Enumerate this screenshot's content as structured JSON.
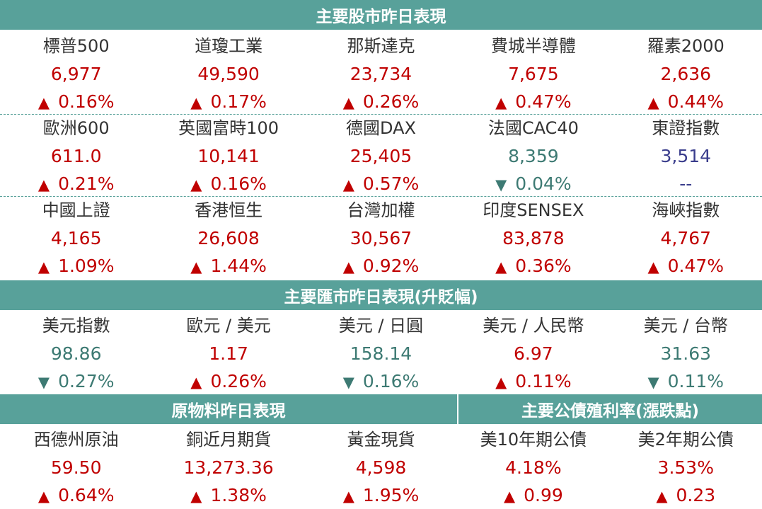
{
  "headers": {
    "stocks": "主要股市昨日表現",
    "fx": "主要匯市昨日表現(升貶幅)",
    "commodities": "原物料昨日表現",
    "bonds": "主要公債殖利率(漲跌點)"
  },
  "colors": {
    "header_bg": "#58a19a",
    "up": "#c00000",
    "down": "#3d7a73",
    "neutral": "#3a3d8c"
  },
  "stocks_row1": [
    {
      "name": "標普500",
      "value": "6,977",
      "change": "0.16%",
      "dir": "up"
    },
    {
      "name": "道瓊工業",
      "value": "49,590",
      "change": "0.17%",
      "dir": "up"
    },
    {
      "name": "那斯達克",
      "value": "23,734",
      "change": "0.26%",
      "dir": "up"
    },
    {
      "name": "費城半導體",
      "value": "7,675",
      "change": "0.47%",
      "dir": "up"
    },
    {
      "name": "羅素2000",
      "value": "2,636",
      "change": "0.44%",
      "dir": "up"
    }
  ],
  "stocks_row2": [
    {
      "name": "歐洲600",
      "value": "611.0",
      "change": "0.21%",
      "dir": "up"
    },
    {
      "name": "英國富時100",
      "value": "10,141",
      "change": "0.16%",
      "dir": "up"
    },
    {
      "name": "德國DAX",
      "value": "25,405",
      "change": "0.57%",
      "dir": "up"
    },
    {
      "name": "法國CAC40",
      "value": "8,359",
      "change": "0.04%",
      "dir": "down"
    },
    {
      "name": "東證指數",
      "value": "3,514",
      "change": "--",
      "dir": "neutral"
    }
  ],
  "stocks_row3": [
    {
      "name": "中國上證",
      "value": "4,165",
      "change": "1.09%",
      "dir": "up"
    },
    {
      "name": "香港恒生",
      "value": "26,608",
      "change": "1.44%",
      "dir": "up"
    },
    {
      "name": "台灣加權",
      "value": "30,567",
      "change": "0.92%",
      "dir": "up"
    },
    {
      "name": "印度SENSEX",
      "value": "83,878",
      "change": "0.36%",
      "dir": "up"
    },
    {
      "name": "海峽指數",
      "value": "4,767",
      "change": "0.47%",
      "dir": "up"
    }
  ],
  "fx": [
    {
      "name": "美元指數",
      "value": "98.86",
      "change": "0.27%",
      "dir": "down"
    },
    {
      "name": "歐元 / 美元",
      "value": "1.17",
      "change": "0.26%",
      "dir": "up"
    },
    {
      "name": "美元 / 日圓",
      "value": "158.14",
      "change": "0.16%",
      "dir": "down"
    },
    {
      "name": "美元 / 人民幣",
      "value": "6.97",
      "change": "0.11%",
      "dir": "up"
    },
    {
      "name": "美元 / 台幣",
      "value": "31.63",
      "change": "0.11%",
      "dir": "down"
    }
  ],
  "commodities": [
    {
      "name": "西德州原油",
      "value": "59.50",
      "change": "0.64%",
      "dir": "up"
    },
    {
      "name": "銅近月期貨",
      "value": "13,273.36",
      "change": "1.38%",
      "dir": "up"
    },
    {
      "name": "黃金現貨",
      "value": "4,598",
      "change": "1.95%",
      "dir": "up"
    }
  ],
  "bonds": [
    {
      "name": "美10年期公債",
      "value": "4.18%",
      "change": "0.99",
      "dir": "up"
    },
    {
      "name": "美2年期公債",
      "value": "3.53%",
      "change": "0.23",
      "dir": "up"
    }
  ]
}
